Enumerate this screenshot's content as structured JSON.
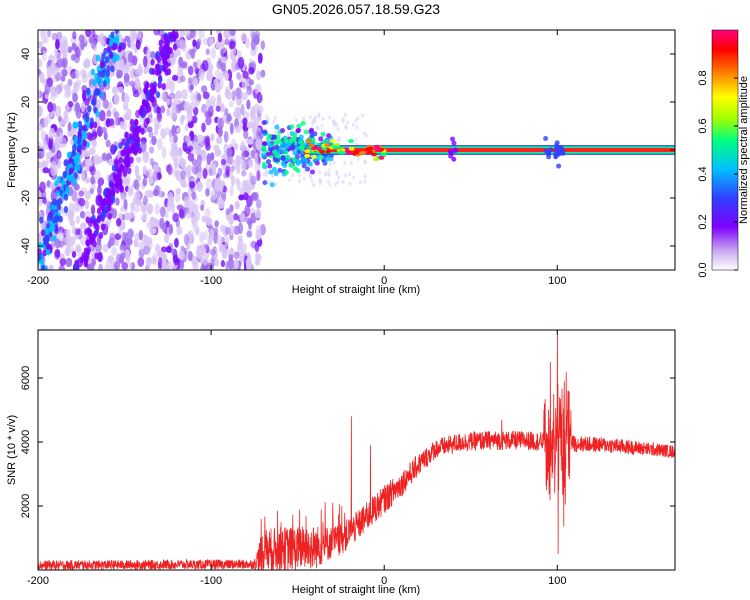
{
  "title": "GN05.2026.057.18.59.G23",
  "chart_data": [
    {
      "type": "heatmap",
      "xlabel": "Height of straight line (km)",
      "ylabel": "Frequency (Hz)",
      "xlim": [
        -200,
        168
      ],
      "ylim": [
        -50,
        50
      ],
      "xticks": [
        -200,
        -100,
        0,
        100
      ],
      "xtick_labels": [
        "-200",
        "-100",
        "0",
        "100"
      ],
      "yticks": [
        -40,
        -20,
        0,
        20,
        40
      ],
      "ytick_labels": [
        "-40",
        "-20",
        "0",
        "20",
        "40"
      ],
      "colorbar": {
        "label": "Normalized spectral amplitude",
        "range": [
          0,
          1
        ],
        "ticks": [
          0.0,
          0.2,
          0.4,
          0.6,
          0.8
        ],
        "tick_labels": [
          "0.0",
          "0.2",
          "0.4",
          "0.6",
          "0.8"
        ],
        "colormap": [
          "#ffffff",
          "#c8a8f0",
          "#8000ff",
          "#3040ff",
          "#00c0ff",
          "#00ff80",
          "#a0ff00",
          "#ffff00",
          "#ff8000",
          "#ff0000",
          "#ff0080"
        ]
      },
      "features": {
        "noise_region_x": [
          -200,
          -70
        ],
        "signal_line_freq": 0,
        "signal_start_x": -70,
        "streak1": {
          "x_start": -200,
          "y_start": -48,
          "x_end": -155,
          "y_end": 48
        },
        "streak2": {
          "x_start": -175,
          "y_start": -48,
          "x_end": -120,
          "y_end": 50
        }
      }
    },
    {
      "type": "line",
      "xlabel": "Height of straight line (km)",
      "ylabel": "SNR (10 * v/v)",
      "xlim": [
        -200,
        168
      ],
      "ylim": [
        0,
        7500
      ],
      "xticks": [
        -200,
        -100,
        0,
        100
      ],
      "xtick_labels": [
        "-200",
        "-100",
        "0",
        "100"
      ],
      "yticks": [
        2000,
        4000,
        6000
      ],
      "ytick_labels": [
        "2000",
        "4000",
        "6000"
      ],
      "color": "#ee2222",
      "trend": {
        "x": [
          -200,
          -75,
          -70,
          -60,
          -40,
          -25,
          -15,
          0,
          10,
          20,
          30,
          45,
          60,
          80,
          95,
          110,
          130,
          168
        ],
        "y": [
          150,
          180,
          600,
          650,
          700,
          950,
          1400,
          2200,
          2700,
          3300,
          3800,
          4000,
          4050,
          4050,
          4000,
          3950,
          3900,
          3700
        ]
      },
      "noise_amplitude": {
        "x": [
          -200,
          -75,
          -70,
          -40,
          -30,
          0,
          30,
          90,
          110,
          168
        ],
        "y": [
          150,
          150,
          700,
          700,
          500,
          450,
          300,
          300,
          260,
          200
        ]
      },
      "spikes": [
        {
          "x": -19,
          "y": 4800
        },
        {
          "x": -8,
          "y": 3900
        },
        {
          "x": 68,
          "y": 4700
        },
        {
          "x": 96,
          "y": 6500
        },
        {
          "x": 98,
          "y": 5500
        },
        {
          "x": 100,
          "y": 7400
        },
        {
          "x": 100.5,
          "y": 500
        },
        {
          "x": 104,
          "y": 5900
        }
      ]
    }
  ]
}
